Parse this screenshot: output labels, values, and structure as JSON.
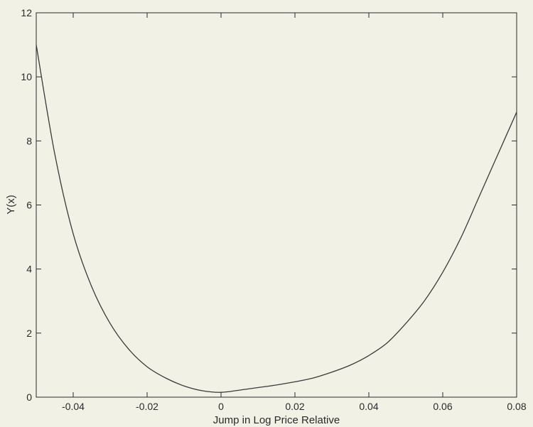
{
  "chart_data": {
    "type": "line",
    "title": "",
    "xlabel": "Jump in Log Price Relative",
    "ylabel": "Y(x)",
    "xlim": [
      -0.05,
      0.08
    ],
    "ylim": [
      0,
      12
    ],
    "xticks": [
      -0.04,
      -0.02,
      0,
      0.02,
      0.04,
      0.06,
      0.08
    ],
    "xtick_labels": [
      "-0.04",
      "-0.02",
      "0",
      "0.02",
      "0.04",
      "0.06",
      "0.08"
    ],
    "yticks": [
      0,
      2,
      4,
      6,
      8,
      10,
      12
    ],
    "ytick_labels": [
      "0",
      "2",
      "4",
      "6",
      "8",
      "10",
      "12"
    ],
    "grid": false,
    "series": [
      {
        "x": [
          -0.05,
          -0.045,
          -0.04,
          -0.035,
          -0.03,
          -0.025,
          -0.02,
          -0.015,
          -0.01,
          -0.005,
          0,
          0.005,
          0.01,
          0.015,
          0.02,
          0.025,
          0.03,
          0.035,
          0.04,
          0.045,
          0.05,
          0.055,
          0.06,
          0.065,
          0.07,
          0.075,
          0.08
        ],
        "y": [
          11.0,
          7.6,
          5.1,
          3.45,
          2.3,
          1.5,
          0.95,
          0.6,
          0.35,
          0.2,
          0.15,
          0.22,
          0.3,
          0.38,
          0.48,
          0.6,
          0.78,
          1.0,
          1.3,
          1.7,
          2.3,
          3.0,
          3.9,
          5.0,
          6.3,
          7.6,
          8.9
        ]
      }
    ],
    "colors": {
      "line": "#3a3a3a",
      "axes": "#2a2a2a",
      "background": "#f1f1e6"
    }
  }
}
